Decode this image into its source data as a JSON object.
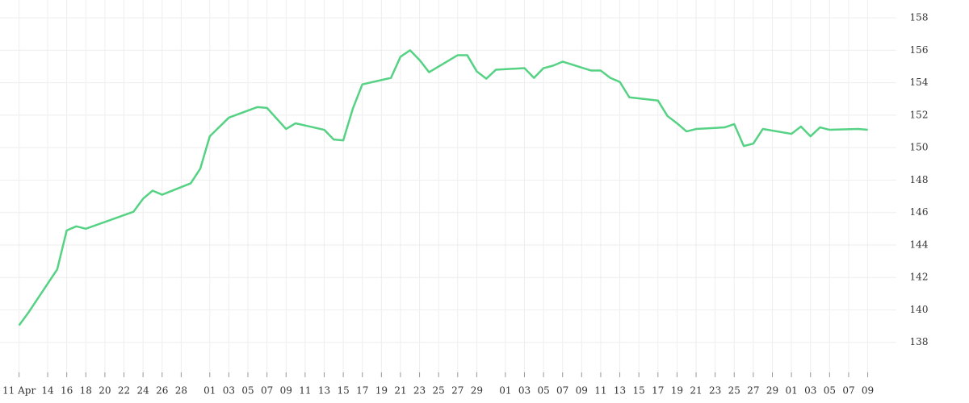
{
  "chart_data": {
    "type": "line",
    "color": "#55d283",
    "grid": true,
    "y_axis_side": "right",
    "x": [
      "04-11",
      "04-12",
      "04-15",
      "04-16",
      "04-17",
      "04-18",
      "04-23",
      "04-24",
      "04-25",
      "04-26",
      "04-29",
      "04-30",
      "05-01",
      "05-03",
      "05-06",
      "05-07",
      "05-09",
      "05-10",
      "05-13",
      "05-14",
      "05-15",
      "05-16",
      "05-17",
      "05-20",
      "05-21",
      "05-22",
      "05-23",
      "05-24",
      "05-27",
      "05-28",
      "05-29",
      "05-30",
      "05-31",
      "06-03",
      "06-04",
      "06-05",
      "06-06",
      "06-07",
      "06-10",
      "06-11",
      "06-12",
      "06-13",
      "06-14",
      "06-17",
      "06-18",
      "06-19",
      "06-20",
      "06-21",
      "06-24",
      "06-25",
      "06-26",
      "06-27",
      "06-28",
      "07-01",
      "07-02",
      "07-03",
      "07-04",
      "07-05",
      "07-08",
      "07-09"
    ],
    "values": [
      139.05,
      139.85,
      142.5,
      144.9,
      145.15,
      145.0,
      146.05,
      146.85,
      147.35,
      147.1,
      147.8,
      148.7,
      150.7,
      151.85,
      152.5,
      152.45,
      151.15,
      151.5,
      151.1,
      150.5,
      150.45,
      152.4,
      153.9,
      154.3,
      155.6,
      156.0,
      155.4,
      154.65,
      155.7,
      155.7,
      154.7,
      154.25,
      154.8,
      154.9,
      154.3,
      154.9,
      155.05,
      155.3,
      154.75,
      154.75,
      154.3,
      154.05,
      153.1,
      152.9,
      151.95,
      151.5,
      151.0,
      151.15,
      151.25,
      151.45,
      150.1,
      150.25,
      151.15,
      150.85,
      151.3,
      150.7,
      151.25,
      151.1,
      151.15,
      151.1
    ],
    "xlim": [
      "04-09",
      "07-12"
    ],
    "xticks": [
      {
        "value": "04-11",
        "label": "11 Apr"
      },
      {
        "value": "04-14",
        "label": "14"
      },
      {
        "value": "04-16",
        "label": "16"
      },
      {
        "value": "04-18",
        "label": "18"
      },
      {
        "value": "04-20",
        "label": "20"
      },
      {
        "value": "04-22",
        "label": "22"
      },
      {
        "value": "04-24",
        "label": "24"
      },
      {
        "value": "04-26",
        "label": "26"
      },
      {
        "value": "04-28",
        "label": "28"
      },
      {
        "value": "05-01",
        "label": "01"
      },
      {
        "value": "05-03",
        "label": "03"
      },
      {
        "value": "05-05",
        "label": "05"
      },
      {
        "value": "05-07",
        "label": "07"
      },
      {
        "value": "05-09",
        "label": "09"
      },
      {
        "value": "05-11",
        "label": "11"
      },
      {
        "value": "05-13",
        "label": "13"
      },
      {
        "value": "05-15",
        "label": "15"
      },
      {
        "value": "05-17",
        "label": "17"
      },
      {
        "value": "05-19",
        "label": "19"
      },
      {
        "value": "05-21",
        "label": "21"
      },
      {
        "value": "05-23",
        "label": "23"
      },
      {
        "value": "05-25",
        "label": "25"
      },
      {
        "value": "05-27",
        "label": "27"
      },
      {
        "value": "05-29",
        "label": "29"
      },
      {
        "value": "06-01",
        "label": "01"
      },
      {
        "value": "06-03",
        "label": "03"
      },
      {
        "value": "06-05",
        "label": "05"
      },
      {
        "value": "06-07",
        "label": "07"
      },
      {
        "value": "06-09",
        "label": "09"
      },
      {
        "value": "06-11",
        "label": "11"
      },
      {
        "value": "06-13",
        "label": "13"
      },
      {
        "value": "06-15",
        "label": "15"
      },
      {
        "value": "06-17",
        "label": "17"
      },
      {
        "value": "06-19",
        "label": "19"
      },
      {
        "value": "06-21",
        "label": "21"
      },
      {
        "value": "06-23",
        "label": "23"
      },
      {
        "value": "06-25",
        "label": "25"
      },
      {
        "value": "06-27",
        "label": "27"
      },
      {
        "value": "06-29",
        "label": "29"
      },
      {
        "value": "07-01",
        "label": "01"
      },
      {
        "value": "07-03",
        "label": "03"
      },
      {
        "value": "07-05",
        "label": "05"
      },
      {
        "value": "07-07",
        "label": "07"
      },
      {
        "value": "07-09",
        "label": "09"
      }
    ],
    "ylim": [
      135.95,
      159.1
    ],
    "yticks": [
      138,
      140,
      142,
      144,
      146,
      148,
      150,
      152,
      154,
      156,
      158
    ]
  }
}
